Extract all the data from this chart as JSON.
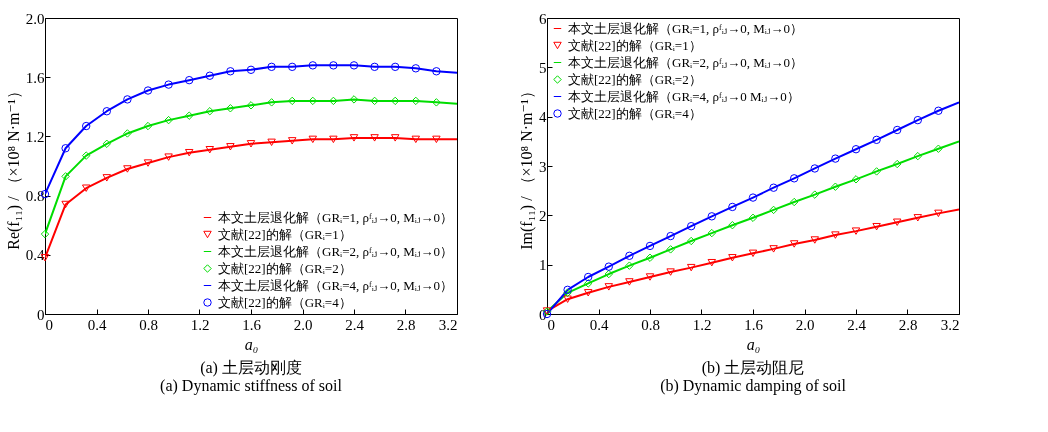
{
  "chart_data": [
    {
      "type": "line",
      "title": "(a) 土层动刚度",
      "subtitle": "(a) Dynamic stiffness of soil",
      "xlabel": "a₀",
      "ylabel": "Re(f₁₁) / （×10⁸ N·m⁻¹）",
      "legend": "bottom right",
      "xlim": [
        0,
        3.2
      ],
      "ylim": [
        0,
        2.0
      ],
      "xticks": [
        0,
        0.4,
        0.8,
        1.2,
        1.6,
        {
          "value": 2,
          "label": "2.0"
        },
        2.4,
        2.8,
        3.2
      ],
      "yticks": [
        0,
        0.4,
        0.8,
        1.2,
        1.6,
        {
          "value": 2,
          "label": "2.0"
        }
      ],
      "series": [
        {
          "name": "本文土层退化解（GRᵢ=1, ρᶠᵢⱼ→0, Mᵢⱼ→0）",
          "type": "line",
          "color": "#ff0000",
          "x": [
            0,
            0.16,
            0.32,
            0.48,
            0.64,
            0.8,
            0.96,
            1.12,
            1.28,
            1.44,
            1.6,
            1.76,
            1.92,
            2.08,
            2.24,
            2.4,
            2.56,
            2.72,
            2.88,
            3.04,
            3.2
          ],
          "values": [
            0.38,
            0.74,
            0.85,
            0.92,
            0.98,
            1.02,
            1.06,
            1.09,
            1.11,
            1.13,
            1.15,
            1.16,
            1.17,
            1.18,
            1.18,
            1.19,
            1.19,
            1.19,
            1.18,
            1.18,
            1.18
          ]
        },
        {
          "name": "文献[22]的解（GRᵢ=1）",
          "type": "scatter",
          "marker": "triangle",
          "color": "#ff0000",
          "x": [
            0,
            0.16,
            0.32,
            0.48,
            0.64,
            0.8,
            0.96,
            1.12,
            1.28,
            1.44,
            1.6,
            1.76,
            1.92,
            2.08,
            2.24,
            2.4,
            2.56,
            2.72,
            2.88,
            3.04
          ],
          "values": [
            0.38,
            0.74,
            0.85,
            0.92,
            0.98,
            1.02,
            1.06,
            1.09,
            1.11,
            1.13,
            1.15,
            1.16,
            1.17,
            1.18,
            1.18,
            1.19,
            1.19,
            1.19,
            1.18,
            1.18
          ]
        },
        {
          "name": "本文土层退化解（GRᵢ=2, ρᶠᵢⱼ→0, Mᵢⱼ→0）",
          "type": "line",
          "color": "#00dd00",
          "x": [
            0,
            0.16,
            0.32,
            0.48,
            0.64,
            0.8,
            0.96,
            1.12,
            1.28,
            1.44,
            1.6,
            1.76,
            1.92,
            2.08,
            2.24,
            2.4,
            2.56,
            2.72,
            2.88,
            3.04,
            3.2
          ],
          "values": [
            0.54,
            0.93,
            1.07,
            1.15,
            1.22,
            1.27,
            1.31,
            1.34,
            1.37,
            1.39,
            1.41,
            1.43,
            1.44,
            1.44,
            1.44,
            1.45,
            1.44,
            1.44,
            1.44,
            1.43,
            1.42
          ]
        },
        {
          "name": "文献[22]的解（GRᵢ=2）",
          "type": "scatter",
          "marker": "diamond",
          "color": "#00dd00",
          "x": [
            0,
            0.16,
            0.32,
            0.48,
            0.64,
            0.8,
            0.96,
            1.12,
            1.28,
            1.44,
            1.6,
            1.76,
            1.92,
            2.08,
            2.24,
            2.4,
            2.56,
            2.72,
            2.88,
            3.04
          ],
          "values": [
            0.54,
            0.93,
            1.07,
            1.15,
            1.22,
            1.27,
            1.31,
            1.34,
            1.37,
            1.39,
            1.41,
            1.43,
            1.44,
            1.44,
            1.44,
            1.45,
            1.44,
            1.44,
            1.44,
            1.43
          ]
        },
        {
          "name": "本文土层退化解（GRᵢ=4, ρᶠᵢⱼ→0, Mᵢⱼ→0）",
          "type": "line",
          "color": "#0000ff",
          "x": [
            0,
            0.16,
            0.32,
            0.48,
            0.64,
            0.8,
            0.96,
            1.12,
            1.28,
            1.44,
            1.6,
            1.76,
            1.92,
            2.08,
            2.24,
            2.4,
            2.56,
            2.72,
            2.88,
            3.04,
            3.2
          ],
          "values": [
            0.81,
            1.12,
            1.27,
            1.37,
            1.45,
            1.51,
            1.55,
            1.58,
            1.61,
            1.64,
            1.65,
            1.67,
            1.67,
            1.68,
            1.68,
            1.68,
            1.67,
            1.67,
            1.66,
            1.64,
            1.63
          ]
        },
        {
          "name": "文献[22]的解（GRᵢ=4）",
          "type": "scatter",
          "marker": "circle",
          "color": "#0000ff",
          "x": [
            0,
            0.16,
            0.32,
            0.48,
            0.64,
            0.8,
            0.96,
            1.12,
            1.28,
            1.44,
            1.6,
            1.76,
            1.92,
            2.08,
            2.24,
            2.4,
            2.56,
            2.72,
            2.88,
            3.04
          ],
          "values": [
            0.81,
            1.12,
            1.27,
            1.37,
            1.45,
            1.51,
            1.55,
            1.58,
            1.61,
            1.64,
            1.65,
            1.67,
            1.67,
            1.68,
            1.68,
            1.68,
            1.67,
            1.67,
            1.66,
            1.64
          ]
        }
      ]
    },
    {
      "type": "line",
      "title": "(b) 土层动阻尼",
      "subtitle": "(b) Dynamic damping of soil",
      "xlabel": "a₀",
      "ylabel": "Im(f₁₁) / （×10⁸ N·m⁻¹）",
      "legend": "top left",
      "xlim": [
        0,
        3.2
      ],
      "ylim": [
        0,
        6
      ],
      "xticks": [
        0,
        0.4,
        0.8,
        1.2,
        1.6,
        {
          "value": 2,
          "label": "2.0"
        },
        2.4,
        2.8,
        3.2
      ],
      "yticks": [
        0,
        1,
        2,
        3,
        4,
        5,
        6
      ],
      "series": [
        {
          "name": "本文土层退化解（GRᵢ=1, ρᶠᵢⱼ→0, Mᵢⱼ→0）",
          "type": "line",
          "color": "#ff0000",
          "x": [
            0,
            0.16,
            0.32,
            0.48,
            0.64,
            0.8,
            0.96,
            1.12,
            1.28,
            1.44,
            1.6,
            1.76,
            1.92,
            2.08,
            2.24,
            2.4,
            2.56,
            2.72,
            2.88,
            3.04,
            3.2
          ],
          "values": [
            0.06,
            0.3,
            0.43,
            0.55,
            0.65,
            0.75,
            0.85,
            0.94,
            1.04,
            1.14,
            1.23,
            1.32,
            1.42,
            1.5,
            1.6,
            1.68,
            1.77,
            1.86,
            1.95,
            2.04,
            2.12
          ]
        },
        {
          "name": "文献[22]的解（GRᵢ=1）",
          "type": "scatter",
          "marker": "triangle",
          "color": "#ff0000",
          "x": [
            0,
            0.16,
            0.32,
            0.48,
            0.64,
            0.8,
            0.96,
            1.12,
            1.28,
            1.44,
            1.6,
            1.76,
            1.92,
            2.08,
            2.24,
            2.4,
            2.56,
            2.72,
            2.88,
            3.04
          ],
          "values": [
            0.06,
            0.3,
            0.43,
            0.55,
            0.65,
            0.75,
            0.85,
            0.94,
            1.04,
            1.14,
            1.23,
            1.32,
            1.42,
            1.5,
            1.6,
            1.68,
            1.77,
            1.86,
            1.95,
            2.04
          ]
        },
        {
          "name": "本文土层退化解（GRᵢ=2, ρᶠᵢⱼ→0, Mᵢⱼ→0）",
          "type": "line",
          "color": "#00dd00",
          "x": [
            0,
            0.16,
            0.32,
            0.48,
            0.64,
            0.8,
            0.96,
            1.12,
            1.28,
            1.44,
            1.6,
            1.76,
            1.92,
            2.08,
            2.24,
            2.4,
            2.56,
            2.72,
            2.88,
            3.04,
            3.2
          ],
          "values": [
            0.05,
            0.43,
            0.62,
            0.81,
            0.98,
            1.14,
            1.31,
            1.48,
            1.64,
            1.8,
            1.95,
            2.11,
            2.27,
            2.42,
            2.58,
            2.73,
            2.89,
            3.04,
            3.2,
            3.35,
            3.5
          ]
        },
        {
          "name": "文献[22]的解（GRᵢ=2）",
          "type": "scatter",
          "marker": "diamond",
          "color": "#00dd00",
          "x": [
            0,
            0.16,
            0.32,
            0.48,
            0.64,
            0.8,
            0.96,
            1.12,
            1.28,
            1.44,
            1.6,
            1.76,
            1.92,
            2.08,
            2.24,
            2.4,
            2.56,
            2.72,
            2.88,
            3.04
          ],
          "values": [
            0.05,
            0.43,
            0.62,
            0.81,
            0.98,
            1.14,
            1.31,
            1.48,
            1.64,
            1.8,
            1.95,
            2.11,
            2.27,
            2.42,
            2.58,
            2.73,
            2.89,
            3.04,
            3.2,
            3.35
          ]
        },
        {
          "name": "本文土层退化解（GRᵢ=4, ρᶠᵢⱼ→0 Mᵢⱼ→0）",
          "type": "line",
          "color": "#0000ff",
          "x": [
            0,
            0.16,
            0.32,
            0.48,
            0.64,
            0.8,
            0.96,
            1.12,
            1.28,
            1.44,
            1.6,
            1.76,
            1.92,
            2.08,
            2.24,
            2.4,
            2.56,
            2.72,
            2.88,
            3.04,
            3.2
          ],
          "values": [
            0,
            0.49,
            0.75,
            0.96,
            1.18,
            1.38,
            1.58,
            1.78,
            1.98,
            2.17,
            2.36,
            2.56,
            2.75,
            2.95,
            3.15,
            3.34,
            3.53,
            3.73,
            3.93,
            4.12,
            4.29
          ]
        },
        {
          "name": "文献[22]的解（GRᵢ=4）",
          "type": "scatter",
          "marker": "circle",
          "color": "#0000ff",
          "x": [
            0,
            0.16,
            0.32,
            0.48,
            0.64,
            0.8,
            0.96,
            1.12,
            1.28,
            1.44,
            1.6,
            1.76,
            1.92,
            2.08,
            2.24,
            2.4,
            2.56,
            2.72,
            2.88,
            3.04
          ],
          "values": [
            0,
            0.49,
            0.75,
            0.96,
            1.18,
            1.38,
            1.58,
            1.78,
            1.98,
            2.17,
            2.36,
            2.56,
            2.75,
            2.95,
            3.15,
            3.34,
            3.53,
            3.73,
            3.93,
            4.12
          ]
        }
      ]
    }
  ]
}
